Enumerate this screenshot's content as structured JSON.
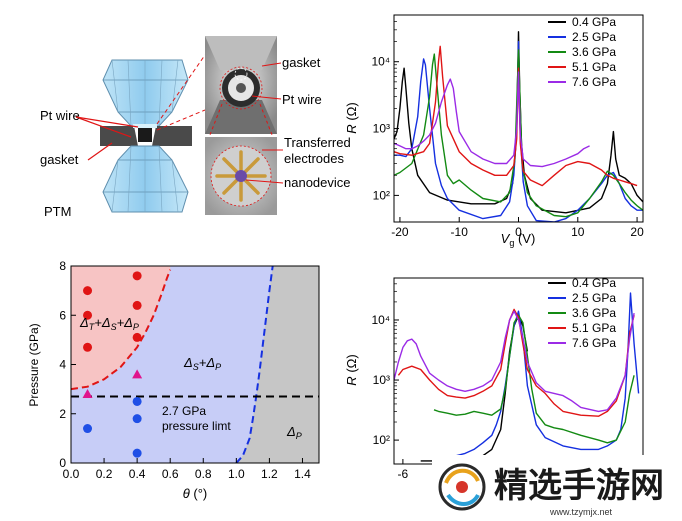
{
  "colors": {
    "p04": "#000000",
    "p25": "#1530e0",
    "p36": "#138a13",
    "p51": "#e01515",
    "p76": "#9b2be6",
    "region_red": "#f7c4c4",
    "region_blue": "#c7cdf7",
    "region_gray": "#c6c6c6",
    "diamond_blue": "#9fd3f0",
    "gasket_gray": "#4a4a4a"
  },
  "schematic": {
    "labels": {
      "pt_wire_left": "Pt wire",
      "gasket_left": "gasket",
      "ptm": "PTM",
      "gasket_right": "gasket",
      "pt_wire_right": "Pt wire",
      "transferred_1": "Transferred",
      "transferred_2": "electrodes",
      "nanodevice": "nanodevice"
    }
  },
  "chart_data": [
    {
      "id": "top-right",
      "type": "line",
      "xlabel_var": "V",
      "xlabel_sub": "g",
      "xlabel_unit": " (V)",
      "ylabel_var": "R",
      "ylabel_unit": " (Ω)",
      "yscale": "log",
      "xlim": [
        -21,
        21
      ],
      "ylim": [
        40,
        50000
      ],
      "xticks": [
        -20,
        -10,
        0,
        10,
        20
      ],
      "xtick_labels": [
        "-20",
        "-10",
        "0",
        "10",
        "20"
      ],
      "yticks": [
        100,
        1000,
        10000
      ],
      "ytick_labels": [
        "10²",
        "10³",
        "10⁴"
      ],
      "legend_position": "top-right",
      "series": [
        {
          "name": "0.4 GPa",
          "color": "#000000",
          "x": [
            -21,
            -20.5,
            -20,
            -19.6,
            -19.3,
            -19,
            -18.5,
            -18,
            -17,
            -15,
            -12,
            -8,
            -4,
            -2,
            -1,
            -0.5,
            -0.2,
            0,
            0.2,
            0.5,
            1,
            2,
            4,
            8,
            12,
            14,
            15,
            15.6,
            16,
            16.4,
            17,
            18,
            19,
            20,
            21
          ],
          "y": [
            700,
            900,
            2000,
            5000,
            8000,
            4000,
            1200,
            500,
            200,
            110,
            85,
            75,
            75,
            90,
            150,
            500,
            3000,
            28000,
            4000,
            600,
            200,
            90,
            60,
            55,
            65,
            90,
            150,
            400,
            900,
            350,
            200,
            180,
            150,
            100,
            80
          ]
        },
        {
          "name": "2.5 GPa",
          "color": "#1530e0",
          "x": [
            -21,
            -20,
            -19,
            -18,
            -17,
            -16.5,
            -16,
            -15.7,
            -15,
            -14,
            -13,
            -12,
            -10,
            -6,
            -3,
            -1.5,
            -0.8,
            -0.3,
            0,
            0.3,
            0.8,
            1.5,
            3,
            6,
            8,
            10,
            12,
            14,
            15,
            16,
            17,
            18,
            19,
            20,
            21
          ],
          "y": [
            400,
            400,
            380,
            500,
            1500,
            5000,
            11000,
            9000,
            2000,
            300,
            140,
            90,
            60,
            45,
            50,
            80,
            200,
            900,
            20000,
            800,
            160,
            70,
            42,
            40,
            45,
            60,
            90,
            150,
            200,
            220,
            150,
            90,
            70,
            60,
            60
          ]
        },
        {
          "name": "3.6 GPa",
          "color": "#138a13",
          "x": [
            -21,
            -20,
            -18,
            -16,
            -15,
            -14.5,
            -14.2,
            -13.8,
            -13,
            -12,
            -11,
            -10,
            -8,
            -6,
            -3,
            -1.5,
            -0.6,
            0,
            0.6,
            1.5,
            3,
            6,
            8,
            10,
            12,
            14,
            15,
            16,
            17,
            18,
            19,
            20,
            21
          ],
          "y": [
            200,
            220,
            300,
            800,
            3000,
            9000,
            13000,
            5000,
            800,
            200,
            150,
            170,
            120,
            90,
            80,
            110,
            350,
            15000,
            300,
            110,
            70,
            50,
            48,
            55,
            90,
            160,
            230,
            200,
            150,
            110,
            85,
            70,
            60
          ]
        },
        {
          "name": "5.1 GPa",
          "color": "#e01515",
          "x": [
            -21,
            -20,
            -18,
            -16,
            -15,
            -14,
            -13.5,
            -13.2,
            -12.8,
            -12,
            -10,
            -8,
            -6,
            -4,
            -2,
            -0.8,
            -0.3,
            0,
            0.3,
            0.8,
            2,
            4,
            6,
            8,
            10,
            12,
            14,
            15,
            16,
            17,
            18,
            19,
            20
          ],
          "y": [
            450,
            420,
            400,
            450,
            600,
            2500,
            10000,
            17000,
            6000,
            1100,
            450,
            300,
            240,
            200,
            200,
            280,
            700,
            8000,
            600,
            230,
            170,
            140,
            200,
            280,
            320,
            300,
            240,
            200,
            180,
            170,
            160,
            150,
            140
          ]
        },
        {
          "name": "7.6 GPa",
          "color": "#9b2be6",
          "x": [
            -21,
            -20,
            -19,
            -18,
            -17,
            -16,
            -15,
            -14,
            -13,
            -12,
            -11.5,
            -11,
            -10.5,
            -10,
            -8,
            -6,
            -4,
            -2,
            -0.8,
            -0.3,
            0,
            0.3,
            0.8,
            2,
            4,
            6,
            8,
            10,
            11,
            12
          ],
          "y": [
            600,
            550,
            500,
            500,
            550,
            650,
            800,
            1200,
            2500,
            4500,
            5500,
            4000,
            1800,
            900,
            450,
            350,
            300,
            300,
            400,
            1000,
            7000,
            800,
            350,
            280,
            270,
            300,
            350,
            420,
            500,
            550
          ]
        }
      ]
    },
    {
      "id": "bottom-left",
      "type": "scatter",
      "xlabel_var": "θ",
      "xlabel_unit": " (°)",
      "ylabel": "Pressure (GPa)",
      "xlim": [
        0,
        1.5
      ],
      "ylim": [
        0,
        8
      ],
      "xticks": [
        0,
        0.2,
        0.4,
        0.6,
        0.8,
        1.0,
        1.2,
        1.4
      ],
      "xtick_labels": [
        "0.0",
        "0.2",
        "0.4",
        "0.6",
        "0.8",
        "1.0",
        "1.2",
        "1.4"
      ],
      "yticks": [
        0,
        2,
        4,
        6,
        8
      ],
      "ytick_labels": [
        "0",
        "2",
        "4",
        "6",
        "8"
      ],
      "threshold_y": 2.7,
      "red_boundary": {
        "x": [
          0,
          0.1,
          0.2,
          0.3,
          0.4,
          0.45,
          0.5,
          0.55,
          0.58,
          0.6
        ],
        "y": [
          3.0,
          3.1,
          3.4,
          3.9,
          4.7,
          5.3,
          6.0,
          6.9,
          7.5,
          7.85
        ]
      },
      "blue_boundary": {
        "x": [
          1.0,
          1.04,
          1.08,
          1.1,
          1.12,
          1.14,
          1.16,
          1.18,
          1.2,
          1.22
        ],
        "y": [
          0.0,
          0.3,
          1.0,
          1.8,
          2.7,
          3.7,
          4.8,
          5.9,
          7.0,
          8.0
        ]
      },
      "points_red": [
        {
          "x": 0.1,
          "y": 7.0
        },
        {
          "x": 0.1,
          "y": 6.0
        },
        {
          "x": 0.1,
          "y": 4.7
        },
        {
          "x": 0.4,
          "y": 7.6
        },
        {
          "x": 0.4,
          "y": 6.4
        },
        {
          "x": 0.4,
          "y": 5.1
        }
      ],
      "points_triangle": [
        {
          "x": 0.1,
          "y": 2.8
        },
        {
          "x": 0.4,
          "y": 3.6
        }
      ],
      "points_blue": [
        {
          "x": 0.1,
          "y": 1.4
        },
        {
          "x": 0.4,
          "y": 2.5
        },
        {
          "x": 0.4,
          "y": 1.8
        },
        {
          "x": 0.4,
          "y": 0.4
        }
      ],
      "region_labels": {
        "red": {
          "parts": [
            "Δ",
            "T",
            "+Δ",
            "S",
            "+Δ",
            "P"
          ]
        },
        "blue": {
          "parts": [
            "Δ",
            "S",
            "+Δ",
            "P"
          ]
        },
        "gray": {
          "parts": [
            "Δ",
            "P"
          ]
        }
      },
      "limit_label_1": "2.7 GPa",
      "limit_label_2": "pressure limt"
    },
    {
      "id": "bottom-right",
      "type": "line",
      "ylabel_var": "R",
      "ylabel_unit": " (Ω)",
      "yscale": "log",
      "xlim": [
        -7,
        21
      ],
      "ylim": [
        40,
        50000
      ],
      "xticks": [
        -6
      ],
      "xtick_labels": [
        "-6"
      ],
      "yticks": [
        100,
        1000,
        10000
      ],
      "ytick_labels": [
        "10²",
        "10³",
        "10⁴"
      ],
      "legend_position": "top-right",
      "series": [
        {
          "name": "0.4 GPa",
          "color": "#000000",
          "x": [
            -4,
            -2,
            0,
            2,
            3,
            4,
            5,
            5.5,
            6,
            6.5,
            7,
            7.5,
            8
          ],
          "y": [
            45,
            45,
            45,
            48,
            55,
            70,
            150,
            600,
            3000,
            8000,
            12000,
            8000,
            3000
          ]
        },
        {
          "name": "2.5 GPa",
          "color": "#1530e0",
          "x": [
            0,
            1,
            2,
            3,
            4,
            4.5,
            5,
            5.5,
            6,
            6.5,
            7,
            7.5,
            8,
            9,
            10,
            12,
            14,
            16,
            17,
            18,
            18.5,
            19,
            19.3,
            19.6,
            20,
            20.5
          ],
          "y": [
            55,
            60,
            70,
            90,
            120,
            180,
            300,
            800,
            2500,
            8000,
            14000,
            5000,
            800,
            180,
            110,
            80,
            70,
            70,
            80,
            100,
            150,
            500,
            3000,
            28000,
            4000,
            600
          ]
        },
        {
          "name": "3.6 GPa",
          "color": "#138a13",
          "x": [
            -2.5,
            -2,
            -1,
            0,
            1,
            2,
            3,
            4,
            5,
            5.5,
            6,
            6.5,
            7,
            7.5,
            8,
            8.5,
            9,
            10,
            11,
            12,
            14,
            16,
            17,
            18,
            19,
            19.5,
            20
          ],
          "y": [
            320,
            300,
            280,
            260,
            270,
            300,
            280,
            260,
            330,
            700,
            2500,
            9000,
            12000,
            9000,
            2500,
            700,
            280,
            180,
            160,
            150,
            120,
            100,
            90,
            100,
            200,
            600,
            1200
          ]
        },
        {
          "name": "5.1 GPa",
          "color": "#e01515",
          "x": [
            -6.5,
            -6,
            -5,
            -4,
            -3,
            -2,
            -1,
            0,
            1,
            2,
            3,
            4,
            5,
            5.5,
            6,
            6.5,
            7,
            7.5,
            8,
            9,
            10,
            11,
            12,
            14,
            16,
            17,
            18,
            19,
            19.5,
            20
          ],
          "y": [
            1200,
            1500,
            1700,
            1500,
            1000,
            700,
            550,
            520,
            500,
            550,
            650,
            800,
            1500,
            4000,
            10000,
            15000,
            11000,
            4000,
            1500,
            800,
            600,
            400,
            300,
            260,
            250,
            300,
            450,
            1200,
            6000,
            12000
          ]
        },
        {
          "name": "7.6 GPa",
          "color": "#9b2be6",
          "x": [
            -7,
            -6.5,
            -6,
            -5.5,
            -5,
            -4.5,
            -4,
            -3,
            -2,
            -1,
            0,
            1,
            2,
            3,
            4,
            5,
            5.5,
            6,
            6.5,
            7,
            7.5,
            8,
            9,
            10,
            11,
            12,
            13,
            14,
            16,
            17,
            18,
            19,
            19.5,
            20
          ],
          "y": [
            1000,
            2000,
            3500,
            4500,
            4800,
            4000,
            2500,
            1300,
            1000,
            800,
            700,
            650,
            700,
            800,
            1000,
            2000,
            5000,
            10000,
            14000,
            10000,
            5000,
            2000,
            900,
            650,
            600,
            550,
            450,
            350,
            300,
            320,
            500,
            1200,
            5000,
            13000
          ]
        }
      ]
    }
  ],
  "watermark": {
    "text": "精选手游网",
    "url": "www.tzymjx.net"
  }
}
